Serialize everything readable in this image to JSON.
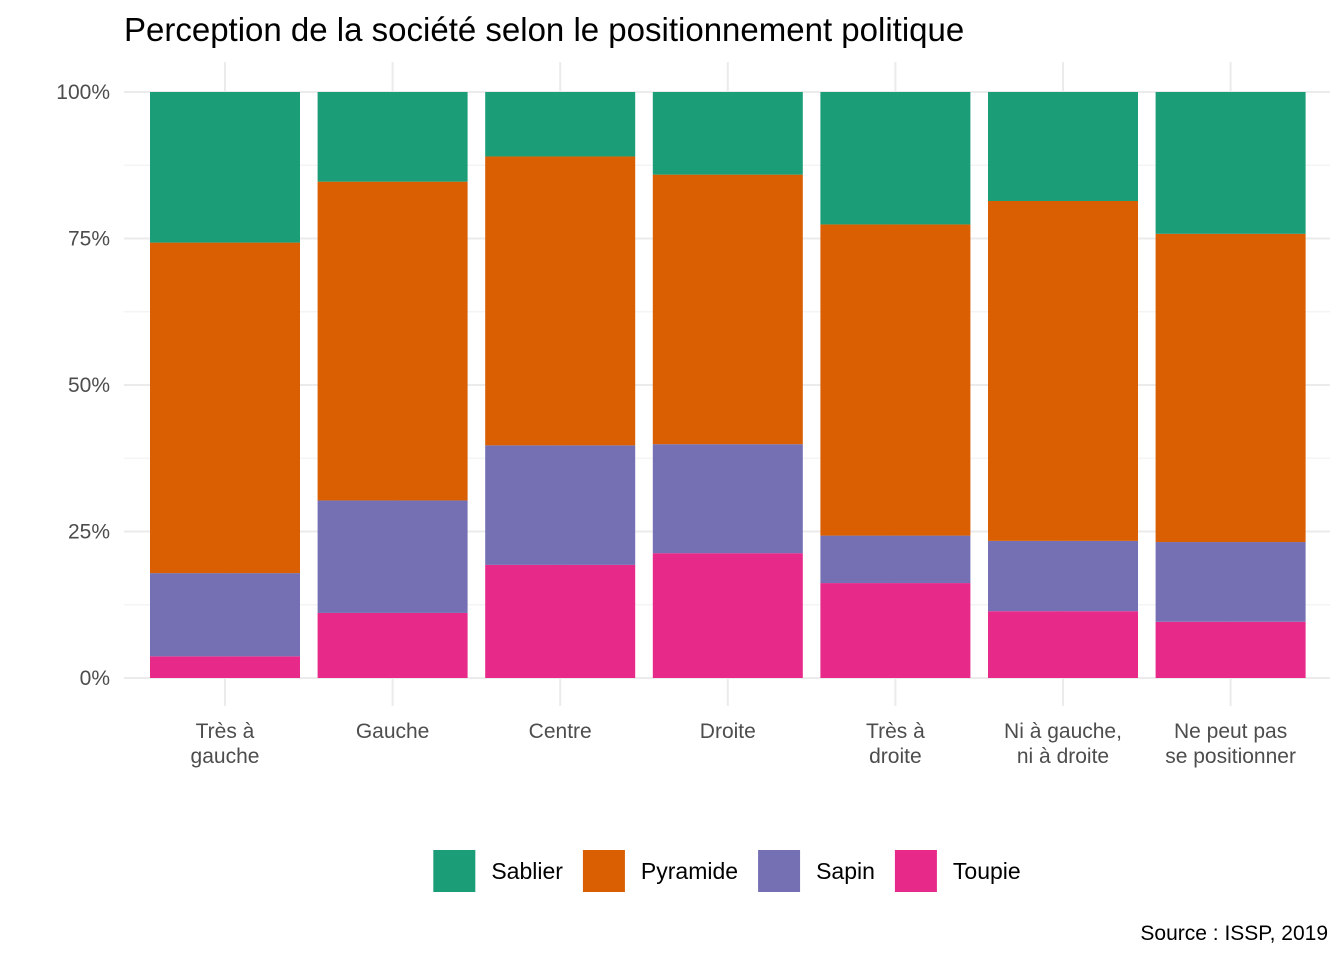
{
  "chart_data": {
    "type": "bar",
    "stacked": true,
    "normalized": true,
    "title": "Perception de la société selon le positionnement politique",
    "caption": "Source : ISSP, 2019",
    "xlabel": "",
    "ylabel": "",
    "ylim": [
      0,
      1
    ],
    "yticks": [
      "0%",
      "25%",
      "50%",
      "75%",
      "100%"
    ],
    "grid": true,
    "legend_position": "bottom",
    "categories": [
      "Très à\ngauche",
      "Gauche",
      "Centre",
      "Droite",
      "Très à\ndroite",
      "Ni à gauche,\nni à droite",
      "Ne peut pas\nse positionner"
    ],
    "series": [
      {
        "name": "Sablier",
        "color": "#1b9e77",
        "values": [
          0.257,
          0.153,
          0.11,
          0.141,
          0.226,
          0.186,
          0.242
        ]
      },
      {
        "name": "Pyramide",
        "color": "#d95f02",
        "values": [
          0.564,
          0.544,
          0.493,
          0.46,
          0.531,
          0.58,
          0.526
        ]
      },
      {
        "name": "Sapin",
        "color": "#7570b3",
        "values": [
          0.142,
          0.192,
          0.204,
          0.186,
          0.081,
          0.12,
          0.136
        ]
      },
      {
        "name": "Toupie",
        "color": "#e7298a",
        "values": [
          0.037,
          0.111,
          0.193,
          0.213,
          0.162,
          0.114,
          0.096
        ]
      }
    ]
  }
}
